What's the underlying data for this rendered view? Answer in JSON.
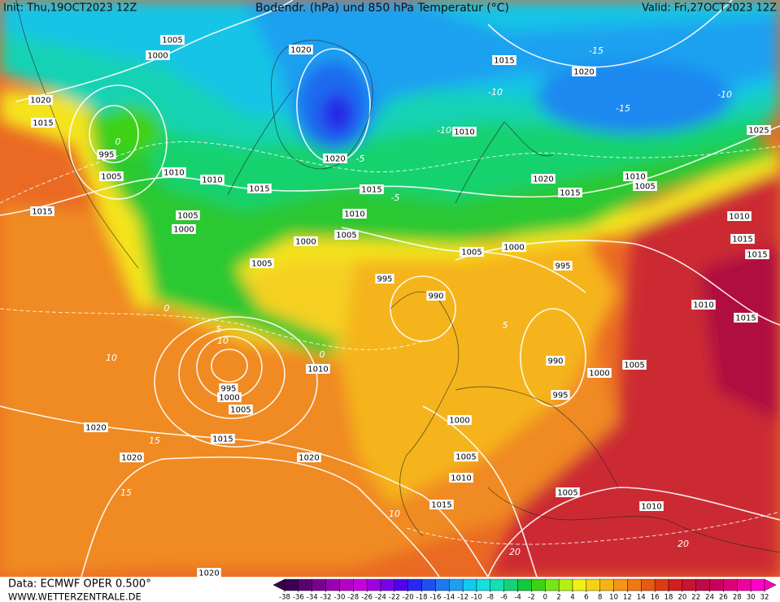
{
  "header": {
    "init": "Init: Thu,19OCT2023 12Z",
    "title": "Bodendr. (hPa) und 850 hPa Temperatur (°C)",
    "valid": "Valid: Fri,27OCT2023 12Z"
  },
  "footer": {
    "data": "Data: ECMWF OPER 0.500°",
    "site": "WWW.WETTERZENTRALE.DE"
  },
  "colorbar": {
    "ticks": [
      -38,
      -36,
      -34,
      -32,
      -30,
      -28,
      -26,
      -24,
      -22,
      -20,
      -18,
      -16,
      -14,
      -12,
      -10,
      -8,
      -6,
      -4,
      -2,
      0,
      2,
      4,
      6,
      8,
      10,
      12,
      14,
      16,
      18,
      20,
      22,
      24,
      26,
      28,
      30,
      32
    ],
    "colors": [
      "#3c0050",
      "#5a0070",
      "#7a0090",
      "#9a00b0",
      "#b400c8",
      "#c800e0",
      "#a000e0",
      "#7a00e8",
      "#5000f0",
      "#2828f0",
      "#1e50f0",
      "#1e78f0",
      "#1ea0f0",
      "#14c8f0",
      "#14e0e0",
      "#14e0b4",
      "#14d278",
      "#14c83c",
      "#3cd214",
      "#78e614",
      "#b4f014",
      "#f0f014",
      "#f5d214",
      "#f5b414",
      "#f59614",
      "#f07814",
      "#e65a14",
      "#dc3c14",
      "#d21e1e",
      "#c81432",
      "#be0a46",
      "#c8005a",
      "#dc0078",
      "#f000a0",
      "#ff00c8"
    ]
  },
  "isobar_labels": [
    "1005",
    "1000",
    "1020",
    "1015",
    "1020",
    "1020",
    "1015",
    "995",
    "1005",
    "1010",
    "1010",
    "1015",
    "1020",
    "1010",
    "1025",
    "1015",
    "1010",
    "1005",
    "1000",
    "1005",
    "1000",
    "1015",
    "1005",
    "1020",
    "1015",
    "1010",
    "1005",
    "1010",
    "1015",
    "1015",
    "1005",
    "1000",
    "995",
    "995",
    "990",
    "1010",
    "1015",
    "990",
    "1000",
    "1005",
    "995",
    "995",
    "1000",
    "1005",
    "1010",
    "1000",
    "1020",
    "1015",
    "1020",
    "1020",
    "1005",
    "1010",
    "1005",
    "1015",
    "1010",
    "1020"
  ],
  "temperature_labels": [
    "-10",
    "-10",
    "-15",
    "-15",
    "-10",
    "-5",
    "0",
    "0",
    "5",
    "10",
    "10",
    "15",
    "15",
    "0",
    "-5",
    "10",
    "20",
    "20",
    "5"
  ]
}
